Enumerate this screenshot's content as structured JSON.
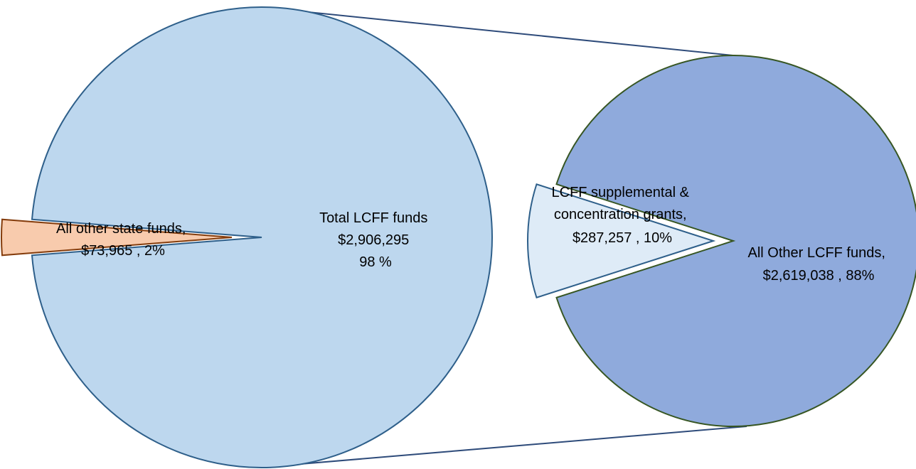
{
  "chart_data": {
    "type": "pie",
    "subtype": "pie-of-pie",
    "primary": {
      "slices": [
        {
          "name": "Total LCFF funds",
          "value": 2906295,
          "percent": 98,
          "label_lines": [
            "Total LCFF funds",
            "$2,906,295",
            "98 %"
          ],
          "color": "#BDD7EE"
        },
        {
          "name": "All other state funds",
          "value": 73965,
          "percent": 2,
          "label_lines": [
            "All other state funds,",
            "$73,965 , 2%"
          ],
          "color": "#F8CBAD"
        }
      ]
    },
    "secondary": {
      "slices": [
        {
          "name": "LCFF supplemental & concentration grants",
          "value": 287257,
          "percent": 10,
          "label_lines": [
            "LCFF supplemental &",
            "concentration grants,",
            "$287,257 , 10%"
          ],
          "color": "#DEEBF7"
        },
        {
          "name": "All Other LCFF funds",
          "value": 2619038,
          "percent": 88,
          "label_lines": [
            "All Other LCFF funds,",
            "$2,619,038 , 88%"
          ],
          "color": "#8FAADC"
        }
      ]
    },
    "title": "",
    "legend": "none"
  }
}
